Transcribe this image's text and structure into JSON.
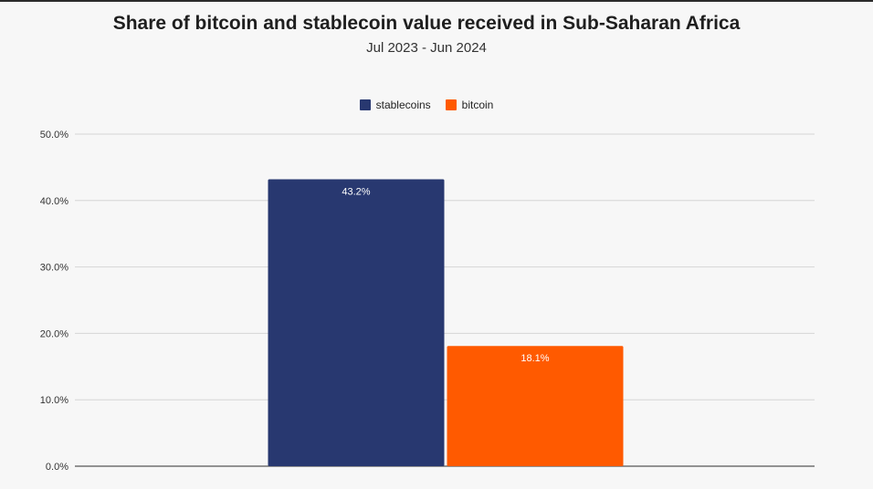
{
  "chart_data": {
    "type": "bar",
    "title": "Share of bitcoin and stablecoin value received in Sub-Saharan Africa",
    "subtitle": "Jul 2023 - Jun 2024",
    "categories": [
      ""
    ],
    "series": [
      {
        "name": "stablecoins",
        "values": [
          43.2
        ],
        "label": "43.2%",
        "color": "#283870"
      },
      {
        "name": "bitcoin",
        "values": [
          18.1
        ],
        "label": "18.1%",
        "color": "#ff5a00"
      }
    ],
    "ylim": [
      0,
      50
    ],
    "yticks": [
      {
        "value": 0,
        "label": "0.0%"
      },
      {
        "value": 10,
        "label": "10.0%"
      },
      {
        "value": 20,
        "label": "20.0%"
      },
      {
        "value": 30,
        "label": "30.0%"
      },
      {
        "value": 40,
        "label": "40.0%"
      },
      {
        "value": 50,
        "label": "50.0%"
      }
    ],
    "xlabel": "",
    "ylabel": "",
    "grid": true,
    "legend": "top-center"
  }
}
